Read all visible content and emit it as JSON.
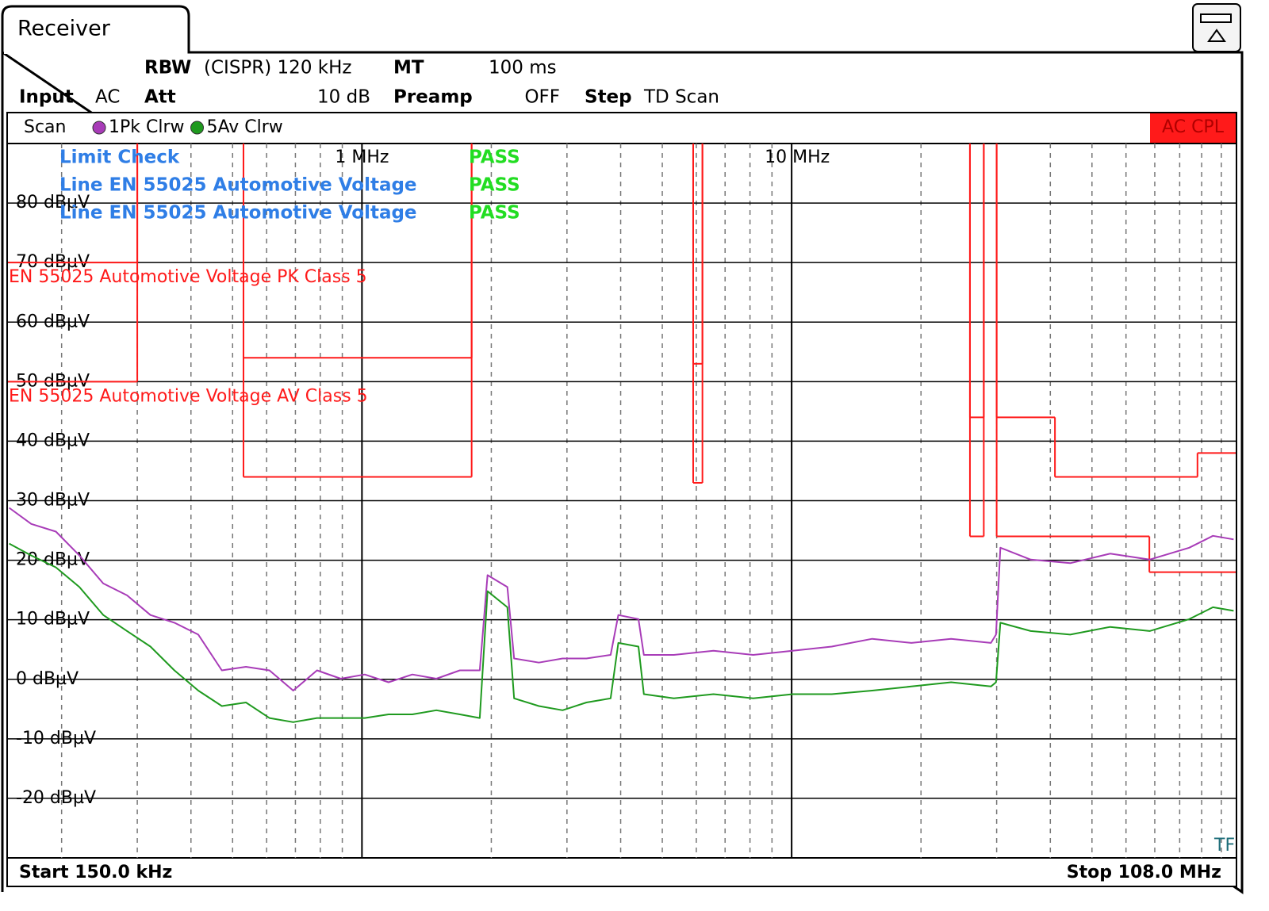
{
  "tab": "Receiver",
  "settings": {
    "rbw_label": "RBW",
    "rbw": "(CISPR) 120 kHz",
    "mt_label": "MT",
    "mt": "100 ms",
    "input_label": "Input",
    "input": "AC",
    "att_label": "Att",
    "att": "10 dB",
    "preamp_label": "Preamp",
    "preamp": "OFF",
    "step_label": "Step",
    "step": "TD Scan"
  },
  "scan_bar": {
    "label": "Scan",
    "coupling": "AC CPL"
  },
  "limit_check": [
    {
      "label": "Limit Check",
      "result": "PASS"
    },
    {
      "label": "Line EN 55025 Automotive Voltage",
      "result": "PASS"
    },
    {
      "label": "Line EN 55025 Automotive Voltage",
      "result": "PASS"
    }
  ],
  "footer": {
    "start": "Start 150.0 kHz",
    "stop": "Stop 108.0 MHz"
  },
  "chart_data": {
    "type": "line",
    "x_scale": "log",
    "xlim": [
      0.15,
      108
    ],
    "ylim": [
      -30,
      90
    ],
    "xticks": [
      {
        "value": 1,
        "label": "1 MHz"
      },
      {
        "value": 10,
        "label": "10 MHz"
      }
    ],
    "yticks": [
      {
        "value": 80,
        "label": "80 dBµV"
      },
      {
        "value": 70,
        "label": "70 dBµV"
      },
      {
        "value": 60,
        "label": "60 dBµV"
      },
      {
        "value": 50,
        "label": "50 dBµV"
      },
      {
        "value": 40,
        "label": "40 dBµV"
      },
      {
        "value": 30,
        "label": "30 dBµV"
      },
      {
        "value": 20,
        "label": "20 dBµV"
      },
      {
        "value": 10,
        "label": "10 dBµV"
      },
      {
        "value": 0,
        "label": "0 dBµV"
      },
      {
        "value": -10,
        "label": "-10 dBµV"
      },
      {
        "value": -20,
        "label": "-20 dBµV"
      }
    ],
    "grid": true,
    "x": [
      0.151,
      0.17,
      0.194,
      0.22,
      0.25,
      0.284,
      0.322,
      0.366,
      0.416,
      0.472,
      0.537,
      0.609,
      0.692,
      0.786,
      0.893,
      1.015,
      1.153,
      1.31,
      1.49,
      1.69,
      1.88,
      1.96,
      2.18,
      2.26,
      2.58,
      2.93,
      3.33,
      3.79,
      3.95,
      4.4,
      4.53,
      5.32,
      6.58,
      8.14,
      10.06,
      12.4,
      15.4,
      19.0,
      23.5,
      29.1,
      29.9,
      30.6,
      36.0,
      44.5,
      55.1,
      68.1,
      84.2,
      95.6,
      106.8
    ],
    "series": [
      {
        "name": "1Pk Clrw",
        "color": "#a83cb8",
        "values": [
          28.8,
          26.1,
          24.8,
          20.8,
          16.1,
          14.1,
          10.8,
          9.5,
          7.5,
          1.5,
          2.1,
          1.5,
          -1.9,
          1.5,
          0.1,
          0.8,
          -0.5,
          0.8,
          0.1,
          1.5,
          1.5,
          17.5,
          15.5,
          3.5,
          2.8,
          3.5,
          3.5,
          4.1,
          10.8,
          10.1,
          4.1,
          4.1,
          4.8,
          4.1,
          4.8,
          5.5,
          6.8,
          6.1,
          6.8,
          6.1,
          7.5,
          22.1,
          20.1,
          19.5,
          21.1,
          20.1,
          22.1,
          24.1,
          23.5
        ]
      },
      {
        "name": "5Av Clrw",
        "color": "#1f9a1f",
        "values": [
          22.8,
          20.8,
          18.8,
          15.5,
          10.8,
          8.1,
          5.5,
          1.5,
          -1.9,
          -4.5,
          -3.9,
          -6.5,
          -7.2,
          -6.5,
          -6.5,
          -6.5,
          -5.9,
          -5.9,
          -5.2,
          -5.9,
          -6.5,
          14.8,
          12.1,
          -3.2,
          -4.5,
          -5.2,
          -3.9,
          -3.2,
          6.1,
          5.5,
          -2.5,
          -3.2,
          -2.5,
          -3.2,
          -2.5,
          -2.5,
          -1.9,
          -1.2,
          -0.5,
          -1.2,
          -0.5,
          9.5,
          8.1,
          7.5,
          8.8,
          8.1,
          10.1,
          12.1,
          11.5
        ]
      }
    ],
    "limit_lines": [
      {
        "name": "EN 55025 Automotive Voltage PK Class 5",
        "color": "#ff1a1a",
        "segments": [
          {
            "x": [
              0.15,
              0.3
            ],
            "value": 70
          },
          {
            "x": [
              0.53,
              1.8
            ],
            "value": 54
          },
          {
            "x": [
              5.9,
              6.2
            ],
            "value": 53
          },
          {
            "x": [
              26,
              28
            ],
            "value": 44
          },
          {
            "x": [
              30,
              41
            ],
            "value": 44
          },
          {
            "x": [
              41,
              88
            ],
            "value": 34
          },
          {
            "x": [
              88,
              108
            ],
            "value": 38
          }
        ]
      },
      {
        "name": "EN 55025 Automotive Voltage AV Class 5",
        "color": "#ff1a1a",
        "segments": [
          {
            "x": [
              0.15,
              0.3
            ],
            "value": 50
          },
          {
            "x": [
              0.53,
              1.8
            ],
            "value": 34
          },
          {
            "x": [
              5.9,
              6.2
            ],
            "value": 33
          },
          {
            "x": [
              26,
              28
            ],
            "value": 24
          },
          {
            "x": [
              30,
              68
            ],
            "value": 24
          },
          {
            "x": [
              68,
              108
            ],
            "value": 18
          }
        ]
      }
    ],
    "marker": "TF"
  }
}
